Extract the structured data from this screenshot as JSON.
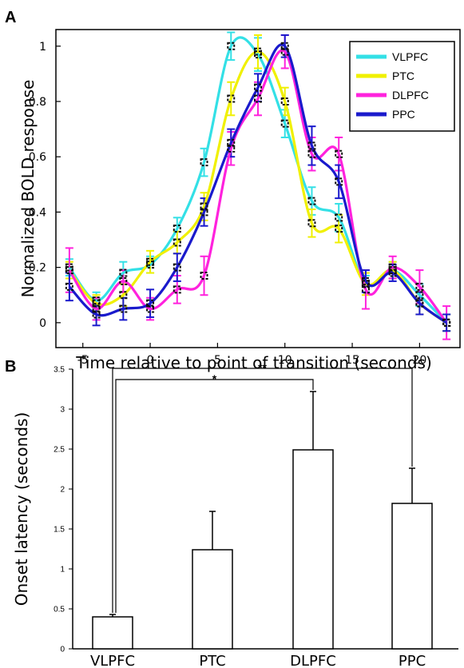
{
  "panels": {
    "a_label": "A",
    "b_label": "B"
  },
  "colors": {
    "VLPFC": "#33e0e6",
    "PTC": "#f0f000",
    "DLPFC": "#ff22dd",
    "PPC": "#1a1acc"
  },
  "chart_data": [
    {
      "type": "line",
      "xlabel": "Time relative to point of transition (seconds)",
      "ylabel": "Normalized BOLD response",
      "xlim": [
        -7,
        23
      ],
      "ylim": [
        -0.09,
        1.06
      ],
      "xticks": [
        -5,
        0,
        5,
        10,
        15,
        20
      ],
      "xtick_labels": [
        "-5",
        "0",
        "5",
        "10",
        "15",
        "20"
      ],
      "yticks": [
        0,
        0.2,
        0.4,
        0.6,
        0.8,
        1
      ],
      "ytick_labels": [
        "0",
        "0.2",
        "0.4",
        "0.6",
        "0.8",
        "1"
      ],
      "legend_position": "top-right",
      "x": [
        -6,
        -4,
        -2,
        0,
        2,
        4,
        6,
        8,
        10,
        12,
        14,
        16,
        18,
        20,
        22
      ],
      "series": [
        {
          "name": "VLPFC",
          "color": "#33e0e6",
          "values": [
            0.2,
            0.08,
            0.18,
            0.21,
            0.34,
            0.58,
            1.0,
            0.97,
            0.72,
            0.44,
            0.38,
            0.14,
            0.19,
            0.1,
            0.0
          ],
          "errors": [
            0.03,
            0.03,
            0.04,
            0.03,
            0.04,
            0.05,
            0.05,
            0.06,
            0.05,
            0.05,
            0.05,
            0.03,
            0.03,
            0.04,
            0.03
          ]
        },
        {
          "name": "PTC",
          "color": "#f0f000",
          "values": [
            0.19,
            0.07,
            0.1,
            0.22,
            0.29,
            0.42,
            0.81,
            0.98,
            0.8,
            0.36,
            0.34,
            0.14,
            0.19,
            0.07,
            0.0
          ],
          "errors": [
            0.03,
            0.03,
            0.04,
            0.04,
            0.04,
            0.05,
            0.06,
            0.06,
            0.05,
            0.05,
            0.05,
            0.04,
            0.03,
            0.04,
            0.03
          ]
        },
        {
          "name": "DLPFC",
          "color": "#ff22dd",
          "values": [
            0.19,
            0.05,
            0.15,
            0.05,
            0.12,
            0.17,
            0.63,
            0.81,
            0.98,
            0.61,
            0.61,
            0.12,
            0.2,
            0.13,
            0.0
          ],
          "errors": [
            0.08,
            0.04,
            0.04,
            0.04,
            0.05,
            0.07,
            0.06,
            0.06,
            0.06,
            0.06,
            0.06,
            0.07,
            0.04,
            0.06,
            0.06
          ]
        },
        {
          "name": "PPC",
          "color": "#1a1acc",
          "values": [
            0.13,
            0.03,
            0.05,
            0.07,
            0.2,
            0.4,
            0.65,
            0.85,
            1.0,
            0.64,
            0.51,
            0.15,
            0.18,
            0.07,
            0.0
          ],
          "errors": [
            0.05,
            0.04,
            0.04,
            0.05,
            0.05,
            0.05,
            0.05,
            0.05,
            0.04,
            0.07,
            0.06,
            0.04,
            0.03,
            0.04,
            0.03
          ]
        }
      ]
    },
    {
      "type": "bar",
      "ylabel": "Onset latency (seconds)",
      "ylim": [
        0,
        3.5
      ],
      "yticks": [
        0,
        0.5,
        1,
        1.5,
        2,
        2.5,
        3,
        3.5
      ],
      "ytick_labels": [
        "0",
        "0.5",
        "1",
        "1.5",
        "2",
        "2.5",
        "3",
        "3.5"
      ],
      "categories": [
        "VLPFC",
        "PTC",
        "DLPFC",
        "PPC"
      ],
      "values": [
        0.4,
        1.24,
        2.49,
        1.82
      ],
      "errors": [
        0.03,
        0.48,
        0.73,
        0.44
      ],
      "significance": [
        {
          "from": "VLPFC",
          "to": "DLPFC",
          "label": "*"
        },
        {
          "from": "VLPFC",
          "to": "PPC",
          "label": "**"
        }
      ]
    }
  ]
}
